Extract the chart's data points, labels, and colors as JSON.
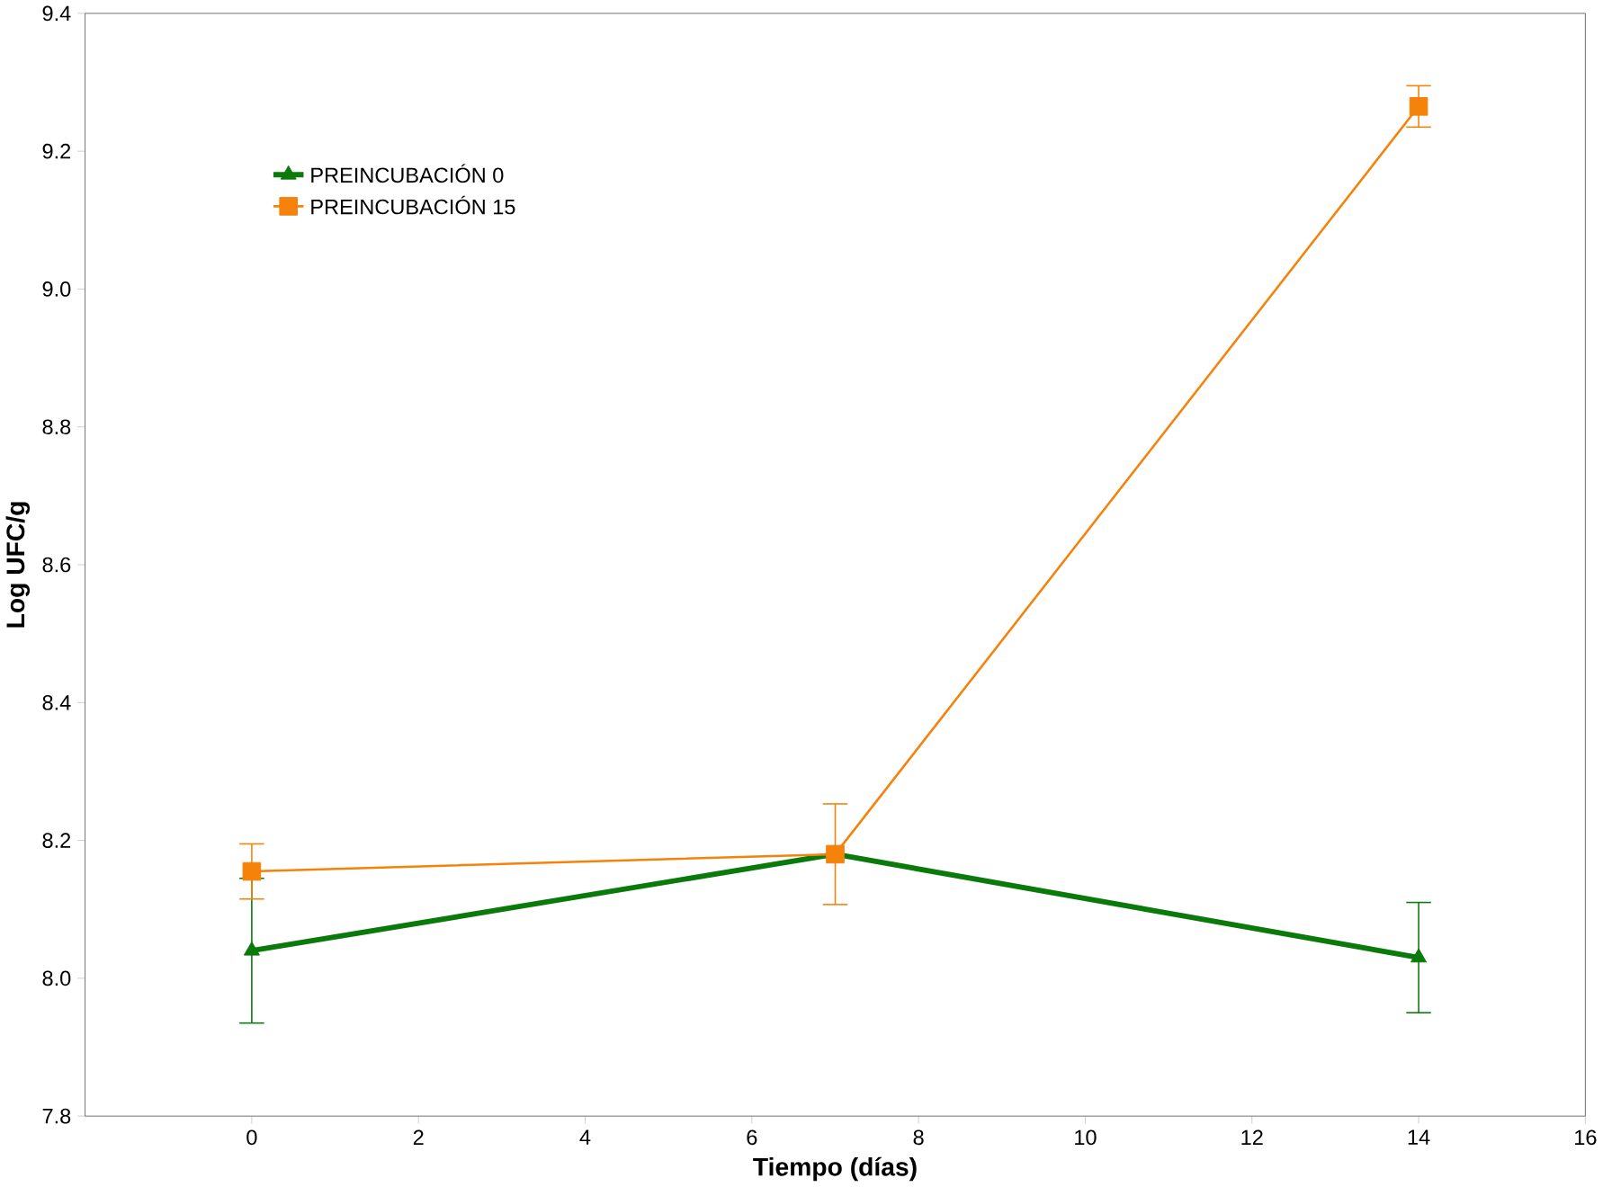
{
  "chart_data": {
    "type": "line",
    "xlabel": "Tiempo (días)",
    "ylabel": "Log UFC/g",
    "x": [
      0,
      7,
      14
    ],
    "series": [
      {
        "name": "PREINCUBACIÓN 0",
        "color": "#0a7a0a",
        "marker": "triangle",
        "values": [
          8.04,
          8.18,
          8.03
        ],
        "errors": [
          0.105,
          null,
          0.08
        ]
      },
      {
        "name": "PREINCUBACIÓN 15",
        "color": "#f5820a",
        "marker": "square",
        "values": [
          8.155,
          8.18,
          9.265
        ],
        "errors": [
          0.04,
          0.073,
          0.03
        ]
      }
    ],
    "xlim": [
      -2,
      16
    ],
    "xticks": [
      0,
      2,
      4,
      6,
      8,
      10,
      12,
      14,
      16
    ],
    "ylim": [
      7.8,
      9.4
    ],
    "yticks": [
      7.8,
      {
        "value": 8,
        "label": "8.0"
      },
      8.2,
      8.4,
      8.6,
      8.8,
      {
        "value": 9,
        "label": "9.0"
      },
      9.2,
      9.4
    ],
    "legend": "top left",
    "grid": false
  }
}
